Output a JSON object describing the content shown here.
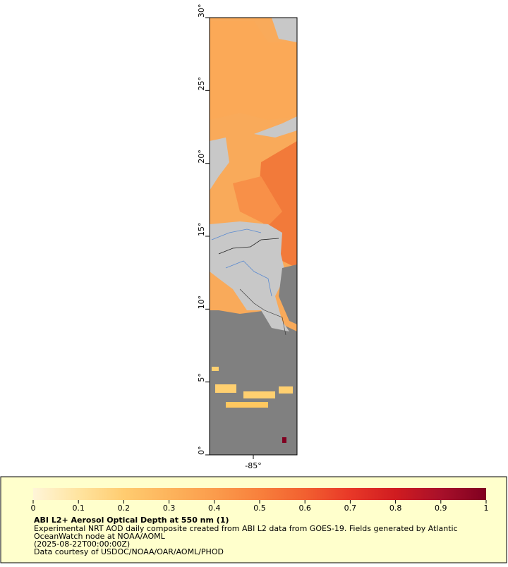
{
  "map": {
    "ylim": [
      0,
      30
    ],
    "yticks": [
      {
        "value": 0,
        "label": "0°"
      },
      {
        "value": 5,
        "label": "5°"
      },
      {
        "value": 10,
        "label": "10°"
      },
      {
        "value": 15,
        "label": "15°"
      },
      {
        "value": 20,
        "label": "20°"
      },
      {
        "value": 25,
        "label": "25°"
      },
      {
        "value": 30,
        "label": "30°"
      }
    ],
    "xlim": [
      -88,
      -82
    ],
    "xticks": [
      {
        "value": -85,
        "label": "-85°"
      }
    ]
  },
  "legend": {
    "title": "ABI L2+ Aerosol Optical Depth at 550 nm (1)",
    "lines": [
      "Experimental NRT AOD daily composite created from ABI L2 data from GOES-19. Fields generated by Atlantic",
      "OceanWatch node at NOAA/AOML",
      "(2025-08-22T00:00:00Z)",
      "Data courtesy of USDOC/NOAA/OAR/AOML/PHOD"
    ],
    "colorbar": {
      "range": [
        0,
        1
      ],
      "ticks": [
        0,
        0.1,
        0.2,
        0.3,
        0.4,
        0.5,
        0.6,
        0.7,
        0.8,
        0.9,
        1
      ],
      "colors": [
        "#fff5d8",
        "#ffe4a0",
        "#ffcc70",
        "#fdb45c",
        "#fb9c4c",
        "#f8803c",
        "#f26030",
        "#e83828",
        "#d01c20",
        "#a8102a",
        "#800020"
      ]
    }
  }
}
